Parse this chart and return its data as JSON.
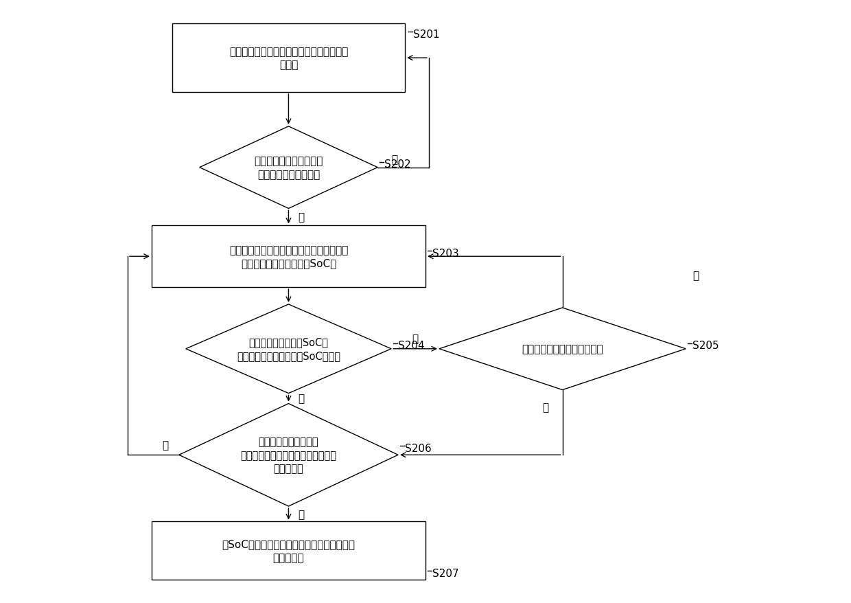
{
  "background_color": "#ffffff",
  "fig_width": 12.4,
  "fig_height": 8.79,
  "dpi": 100,
  "s201_label": "整车下电后静置，计时器开始对静置时间进\n行计时",
  "s202_label": "判断动力电池的静置时间\n是否达到预设静置时间",
  "s203_label": "对动力电池单体的开路电压进行监测，同时\n获得各个动力电池单体的SoC值",
  "s204_label": "判断低动力电池单体SoC值\n是否在均衡启动所要求的SoC范围内",
  "s205_label": "判断间隔时间是否达到预设值",
  "s206_label": "判断各动力电池单体与\n最低动力电池单体的差异值是否达到\n预设差异值",
  "s207_label": "对SoC差异值达到预设差异值的高电量电池单\n体启动均衡",
  "yes_label": "是",
  "no_label": "否",
  "line_color": "#000000",
  "text_color": "#000000",
  "box_fill": "#ffffff",
  "font_size_main": 11,
  "font_size_step": 11,
  "font_size_yn": 11
}
